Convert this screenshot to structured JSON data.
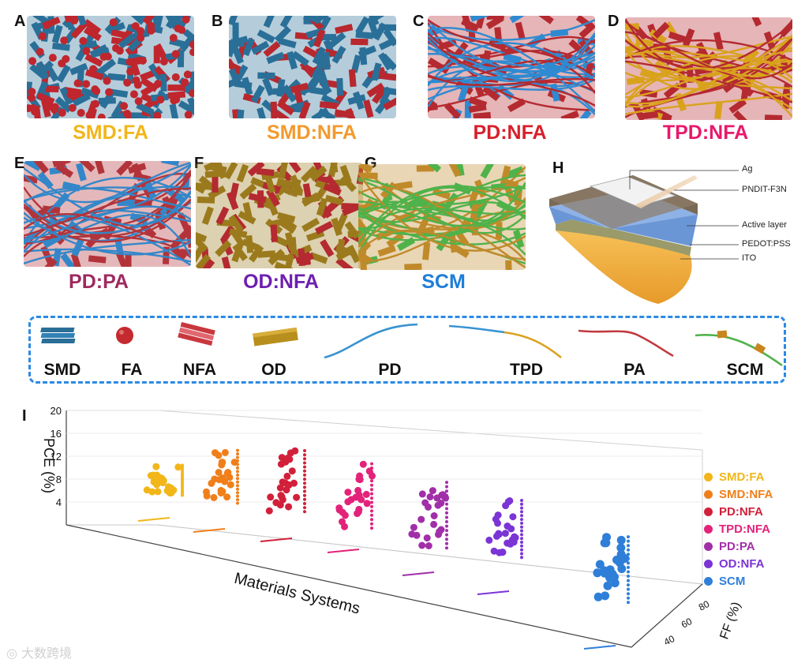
{
  "panels": [
    {
      "letter": "A",
      "label": "SMD:FA",
      "label_color": "#f2b619",
      "fill": "#2a6f98",
      "accent": "#c0262d",
      "fibers": false
    },
    {
      "letter": "B",
      "label": "SMD:NFA",
      "label_color": "#f29a2e",
      "fill": "#2a6f98",
      "accent": "#b8282e",
      "fibers": false
    },
    {
      "letter": "C",
      "label": "PD:NFA",
      "label_color": "#d71f2b",
      "fill": "#b42a30",
      "accent": "#2f8ad1",
      "fibers": true
    },
    {
      "letter": "D",
      "label": "TPD:NFA",
      "label_color": "#e8196c",
      "fill": "#b42a30",
      "accent": "#d9a21d",
      "fibers": true
    },
    {
      "letter": "E",
      "label": "PD:PA",
      "label_color": "#9e2a5e",
      "fill": "#b2343a",
      "accent": "#3387c9",
      "fibers": true
    },
    {
      "letter": "F",
      "label": "OD:NFA",
      "label_color": "#6d1fb0",
      "fill": "#9a7a1c",
      "accent": "#b42a30",
      "fibers": false
    },
    {
      "letter": "G",
      "label": "SCM",
      "label_color": "#1e7ed8",
      "fill": "#c08a2a",
      "accent": "#4fb24a",
      "fibers": true
    },
    {
      "letter": "H",
      "label": "",
      "label_color": "#111111",
      "fill": "",
      "accent": "",
      "fibers": false
    }
  ],
  "device_layers": [
    "Ag",
    "PNDIT-F3N",
    "Active layer",
    "PEDOT:PSS",
    "ITO"
  ],
  "components": [
    "SMD",
    "FA",
    "NFA",
    "OD",
    "PD",
    "TPD",
    "PA",
    "SCM"
  ],
  "chart_panel_letter": "I",
  "watermark": "大数跨境",
  "chart_data": {
    "type": "scatter",
    "dimensions": "3d",
    "title": "",
    "xlabel": "Materials Systems",
    "ylabel": "FF (%)",
    "zlabel": "PCE (%)",
    "zlim": [
      0,
      20
    ],
    "z_ticks": [
      4,
      8,
      12,
      16,
      20
    ],
    "ylim": [
      30,
      85
    ],
    "y_ticks": [
      40,
      60,
      80
    ],
    "series": [
      {
        "name": "SMD:FA",
        "color": "#f2b619",
        "pce_min": 4.5,
        "pce_max": 11.5
      },
      {
        "name": "SMD:NFA",
        "color": "#f07f1a",
        "pce_min": 4.5,
        "pce_max": 16.8
      },
      {
        "name": "PD:NFA",
        "color": "#d2203a",
        "pce_min": 4.0,
        "pce_max": 18.2
      },
      {
        "name": "TPD:NFA",
        "color": "#e3227a",
        "pce_min": 2.0,
        "pce_max": 17.0
      },
      {
        "name": "PD:PA",
        "color": "#a12fa8",
        "pce_min": 0.5,
        "pce_max": 15.8
      },
      {
        "name": "OD:NFA",
        "color": "#7b34d6",
        "pce_min": 0.5,
        "pce_max": 13.8
      },
      {
        "name": "SCM",
        "color": "#2f7fd9",
        "pce_min": 0.5,
        "pce_max": 15.8
      }
    ]
  }
}
